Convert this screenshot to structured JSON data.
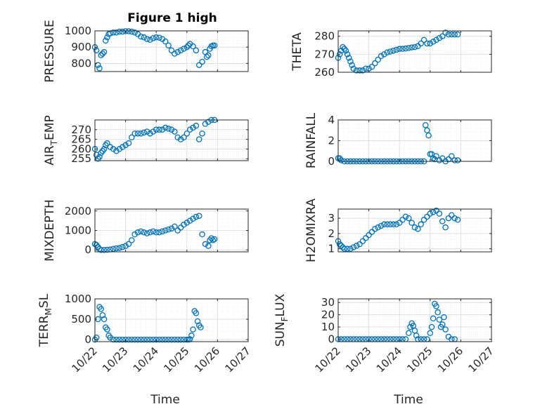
{
  "figure": {
    "title": "Figure 1 high"
  },
  "colors": {
    "marker": "#0072BD",
    "axis": "#262626",
    "grid_major": "#DFDFDF",
    "grid_minor": "#EEEEEE"
  },
  "xaxis": {
    "ticks": [
      22,
      23,
      24,
      25,
      26,
      27
    ],
    "tick_labels": [
      "10/22",
      "10/23",
      "10/24",
      "10/25",
      "10/26",
      "10/27"
    ],
    "label": "Time",
    "range": [
      22,
      27
    ]
  },
  "chart_data": [
    {
      "type": "scatter",
      "ylabel": "PRESSURE",
      "title": "Figure 1 high",
      "xlim": [
        22,
        27
      ],
      "ylim": [
        750,
        1000
      ],
      "yticks": [
        800,
        900,
        1000
      ],
      "grid": "major+minor",
      "x": [
        22.0,
        22.05,
        22.1,
        22.15,
        22.2,
        22.25,
        22.3,
        22.35,
        22.4,
        22.45,
        22.5,
        22.6,
        22.7,
        22.8,
        22.9,
        23.0,
        23.1,
        23.2,
        23.3,
        23.4,
        23.5,
        23.6,
        23.7,
        23.8,
        23.9,
        24.0,
        24.1,
        24.2,
        24.3,
        24.4,
        24.5,
        24.6,
        24.7,
        24.8,
        24.9,
        25.0,
        25.05,
        25.1,
        25.2,
        25.3,
        25.4,
        25.5,
        25.6,
        25.65,
        25.7,
        25.75,
        25.8,
        25.85,
        25.9
      ],
      "y": [
        900,
        880,
        790,
        770,
        850,
        860,
        870,
        940,
        960,
        980,
        985,
        990,
        990,
        995,
        995,
        998,
        998,
        995,
        990,
        980,
        965,
        960,
        950,
        945,
        955,
        960,
        958,
        950,
        935,
        910,
        880,
        860,
        870,
        880,
        890,
        900,
        910,
        920,
        905,
        880,
        790,
        810,
        870,
        840,
        850,
        890,
        905,
        910,
        910
      ]
    },
    {
      "type": "scatter",
      "ylabel": "THETA",
      "xlim": [
        22,
        27
      ],
      "ylim": [
        260,
        283
      ],
      "yticks": [
        260,
        270,
        280
      ],
      "grid": "major+minor",
      "x": [
        22.0,
        22.05,
        22.1,
        22.15,
        22.2,
        22.25,
        22.3,
        22.35,
        22.4,
        22.45,
        22.5,
        22.6,
        22.7,
        22.8,
        22.9,
        23.0,
        23.1,
        23.2,
        23.3,
        23.4,
        23.5,
        23.6,
        23.7,
        23.8,
        23.9,
        24.0,
        24.1,
        24.2,
        24.3,
        24.4,
        24.5,
        24.6,
        24.7,
        24.8,
        24.9,
        25.0,
        25.1,
        25.2,
        25.3,
        25.4,
        25.5,
        25.6,
        25.7,
        25.8,
        25.9
      ],
      "y": [
        268,
        270,
        272,
        274,
        273,
        272,
        270,
        268,
        266,
        264,
        262,
        261,
        261,
        261,
        262,
        262,
        263,
        265,
        267,
        269,
        270,
        271,
        271.5,
        272,
        272.5,
        273,
        273,
        273.2,
        273.5,
        273.8,
        274,
        274.5,
        276,
        278,
        276,
        276,
        277,
        278,
        279,
        280,
        282,
        281,
        281,
        281,
        281
      ]
    },
    {
      "type": "scatter",
      "ylabel": "AIR_TEMP",
      "xlim": [
        22,
        27
      ],
      "ylim": [
        254,
        275
      ],
      "yticks": [
        255,
        260,
        265,
        270
      ],
      "grid": "major+minor",
      "x": [
        22.0,
        22.05,
        22.1,
        22.15,
        22.2,
        22.25,
        22.3,
        22.35,
        22.4,
        22.5,
        22.6,
        22.7,
        22.8,
        22.9,
        23.0,
        23.1,
        23.2,
        23.3,
        23.4,
        23.5,
        23.6,
        23.7,
        23.8,
        23.9,
        24.0,
        24.1,
        24.2,
        24.3,
        24.4,
        24.5,
        24.6,
        24.7,
        24.8,
        24.9,
        25.0,
        25.1,
        25.2,
        25.3,
        25.4,
        25.5,
        25.6,
        25.7,
        25.8,
        25.9
      ],
      "y": [
        260,
        257,
        255,
        256,
        258,
        259,
        260,
        262,
        263,
        261,
        260,
        259,
        260,
        261,
        262,
        263,
        266,
        268,
        268,
        268,
        268.5,
        269,
        268,
        269,
        270,
        270,
        270,
        271,
        270.5,
        270,
        269,
        266,
        265,
        266,
        268,
        270,
        271,
        272,
        265,
        268,
        273,
        274,
        275,
        275
      ]
    },
    {
      "type": "scatter",
      "ylabel": "RAINFALL",
      "xlim": [
        22,
        27
      ],
      "ylim": [
        0,
        4
      ],
      "yticks": [
        0,
        2,
        4
      ],
      "grid": "major+minor",
      "x": [
        22.0,
        22.05,
        22.1,
        22.2,
        22.3,
        22.4,
        22.5,
        22.6,
        22.7,
        22.8,
        22.9,
        23.0,
        23.1,
        23.2,
        23.3,
        23.4,
        23.5,
        23.6,
        23.7,
        23.8,
        23.9,
        24.0,
        24.1,
        24.2,
        24.3,
        24.4,
        24.5,
        24.6,
        24.7,
        24.8,
        24.85,
        24.9,
        24.95,
        25.0,
        25.05,
        25.1,
        25.15,
        25.2,
        25.3,
        25.4,
        25.5,
        25.6,
        25.7,
        25.8,
        25.9
      ],
      "y": [
        0.3,
        0.3,
        0.1,
        0,
        0,
        0,
        0,
        0,
        0,
        0,
        0,
        0,
        0,
        0,
        0,
        0,
        0,
        0,
        0,
        0,
        0,
        0,
        0,
        0,
        0,
        0,
        0,
        0,
        0,
        0,
        3.5,
        3.0,
        2.5,
        0.7,
        0.7,
        0.3,
        0.2,
        0.5,
        0.1,
        0.3,
        0,
        0.2,
        0.5,
        0.1,
        0.1
      ]
    },
    {
      "type": "scatter",
      "ylabel": "MIXDEPTH",
      "xlim": [
        22,
        27
      ],
      "ylim": [
        -100,
        2100
      ],
      "yticks": [
        0,
        1000,
        2000
      ],
      "grid": "major+minor",
      "x": [
        22.0,
        22.05,
        22.1,
        22.15,
        22.2,
        22.3,
        22.4,
        22.5,
        22.6,
        22.7,
        22.8,
        22.9,
        23.0,
        23.1,
        23.2,
        23.3,
        23.4,
        23.5,
        23.6,
        23.7,
        23.8,
        23.9,
        24.0,
        24.1,
        24.2,
        24.3,
        24.4,
        24.5,
        24.6,
        24.7,
        24.8,
        24.9,
        25.0,
        25.1,
        25.2,
        25.3,
        25.4,
        25.5,
        25.6,
        25.7,
        25.75,
        25.8,
        25.85,
        25.9
      ],
      "y": [
        300,
        250,
        150,
        50,
        0,
        0,
        10,
        20,
        50,
        80,
        100,
        150,
        200,
        300,
        500,
        800,
        900,
        950,
        900,
        850,
        900,
        950,
        900,
        900,
        950,
        1000,
        1050,
        1100,
        1200,
        1000,
        1150,
        1300,
        1400,
        1500,
        1600,
        1700,
        1750,
        800,
        300,
        200,
        500,
        600,
        500,
        550
      ]
    },
    {
      "type": "scatter",
      "ylabel": "H2OMIXRA",
      "xlim": [
        22,
        27
      ],
      "ylim": [
        0.8,
        3.6
      ],
      "yticks": [
        1,
        2,
        3
      ],
      "grid": "major+minor",
      "x": [
        22.0,
        22.05,
        22.1,
        22.15,
        22.2,
        22.3,
        22.4,
        22.5,
        22.6,
        22.7,
        22.8,
        22.9,
        23.0,
        23.1,
        23.2,
        23.3,
        23.4,
        23.5,
        23.6,
        23.7,
        23.8,
        23.9,
        24.0,
        24.1,
        24.2,
        24.3,
        24.4,
        24.5,
        24.6,
        24.7,
        24.8,
        24.9,
        25.0,
        25.1,
        25.2,
        25.3,
        25.4,
        25.5,
        25.6,
        25.7,
        25.8,
        25.9
      ],
      "y": [
        1.5,
        1.3,
        1.2,
        1.1,
        1.0,
        1.0,
        1.0,
        1.1,
        1.2,
        1.3,
        1.5,
        1.7,
        1.9,
        2.1,
        2.3,
        2.4,
        2.5,
        2.6,
        2.6,
        2.6,
        2.6,
        2.6,
        2.7,
        2.9,
        3.1,
        3.0,
        2.7,
        2.4,
        2.3,
        2.6,
        2.9,
        3.1,
        3.3,
        3.4,
        3.5,
        3.3,
        2.8,
        2.4,
        3.0,
        3.2,
        3.0,
        2.9
      ]
    },
    {
      "type": "scatter",
      "ylabel": "TERR_MSL",
      "xlim": [
        22,
        27
      ],
      "ylim": [
        -50,
        1000
      ],
      "yticks": [
        0,
        500,
        1000
      ],
      "grid": "major+minor",
      "x": [
        22.0,
        22.05,
        22.1,
        22.15,
        22.2,
        22.25,
        22.3,
        22.35,
        22.4,
        22.45,
        22.5,
        22.6,
        22.7,
        22.8,
        22.9,
        23.0,
        23.1,
        23.2,
        23.3,
        23.4,
        23.5,
        23.6,
        23.7,
        23.8,
        23.9,
        24.0,
        24.1,
        24.2,
        24.3,
        24.4,
        24.5,
        24.6,
        24.7,
        24.8,
        24.9,
        25.0,
        25.05,
        25.1,
        25.15,
        25.2,
        25.25,
        25.3,
        25.35,
        25.4,
        25.45
      ],
      "y": [
        0,
        50,
        500,
        800,
        750,
        600,
        500,
        300,
        250,
        100,
        50,
        0,
        0,
        0,
        0,
        0,
        0,
        0,
        0,
        0,
        0,
        0,
        0,
        0,
        0,
        0,
        0,
        0,
        0,
        0,
        0,
        0,
        0,
        0,
        0,
        0,
        0,
        10,
        100,
        250,
        700,
        650,
        450,
        350,
        300
      ]
    },
    {
      "type": "scatter",
      "ylabel": "SUN_FLUX",
      "xlim": [
        22,
        27
      ],
      "ylim": [
        -2,
        33
      ],
      "yticks": [
        0,
        10,
        20,
        30
      ],
      "grid": "major+minor",
      "x": [
        22.0,
        22.1,
        22.2,
        22.3,
        22.4,
        22.5,
        22.6,
        22.7,
        22.8,
        22.9,
        23.0,
        23.1,
        23.2,
        23.3,
        23.4,
        23.5,
        23.6,
        23.7,
        23.8,
        23.9,
        24.0,
        24.1,
        24.2,
        24.3,
        24.35,
        24.4,
        24.45,
        24.5,
        24.55,
        24.6,
        24.7,
        24.8,
        24.9,
        25.0,
        25.05,
        25.1,
        25.15,
        25.2,
        25.25,
        25.3,
        25.35,
        25.4,
        25.45,
        25.5,
        25.6,
        25.7,
        25.8
      ],
      "y": [
        0,
        0,
        0,
        0,
        0,
        0,
        0,
        0,
        0,
        0,
        0,
        0,
        0,
        0,
        0,
        0,
        0,
        0,
        0,
        0,
        0,
        0,
        0,
        5,
        10,
        13,
        11,
        7,
        3,
        0,
        0,
        0,
        0,
        5,
        10,
        17,
        29,
        27,
        22,
        16,
        10,
        12,
        18,
        8,
        2,
        0,
        0
      ]
    }
  ]
}
